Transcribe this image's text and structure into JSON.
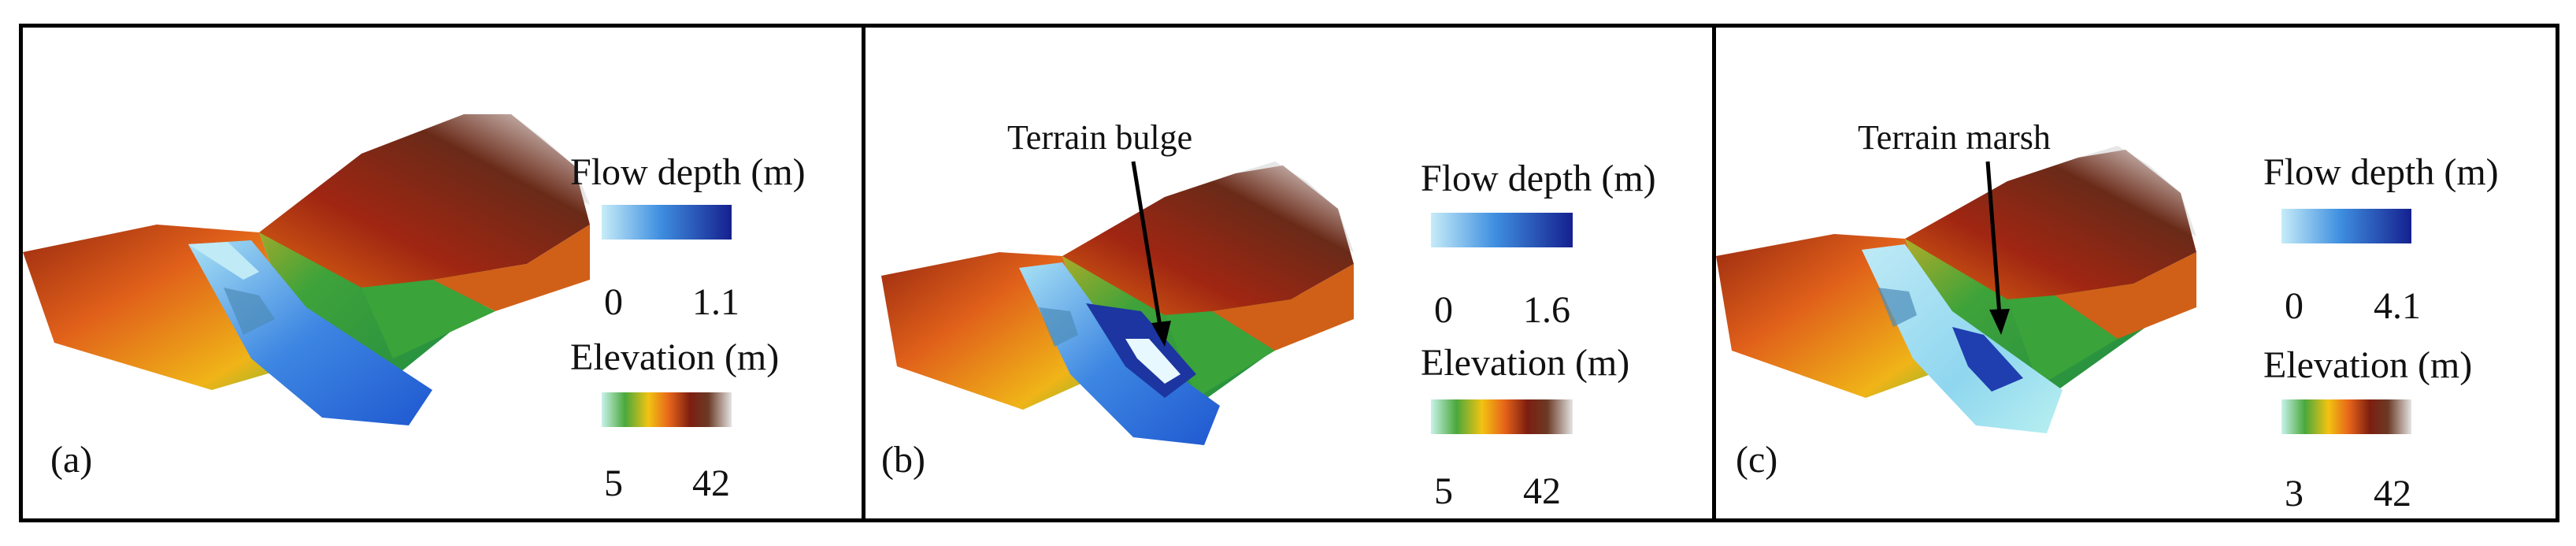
{
  "panels": [
    {
      "label": "(a)",
      "annotation": "",
      "flow_depth": {
        "title": "Flow depth (m)",
        "min": "0",
        "max": "1.1"
      },
      "elevation": {
        "title": "Elevation (m)",
        "min": "5",
        "max": "42"
      }
    },
    {
      "label": "(b)",
      "annotation": "Terrain bulge",
      "flow_depth": {
        "title": "Flow depth (m)",
        "min": "0",
        "max": "1.6"
      },
      "elevation": {
        "title": "Elevation (m)",
        "min": "5",
        "max": "42"
      }
    },
    {
      "label": "(c)",
      "annotation": "Terrain marsh",
      "flow_depth": {
        "title": "Flow depth (m)",
        "min": "0",
        "max": "4.1"
      },
      "elevation": {
        "title": "Elevation (m)",
        "min": "3",
        "max": "42"
      }
    }
  ],
  "colors": {
    "flow_low": "#bfe9f7",
    "flow_high": "#1a2a96",
    "elevation_stops": [
      "#c8f2ea",
      "#3fa93a",
      "#f0c010",
      "#e86a10",
      "#8a2010",
      "#5a2a18",
      "#e0e0e0"
    ]
  }
}
